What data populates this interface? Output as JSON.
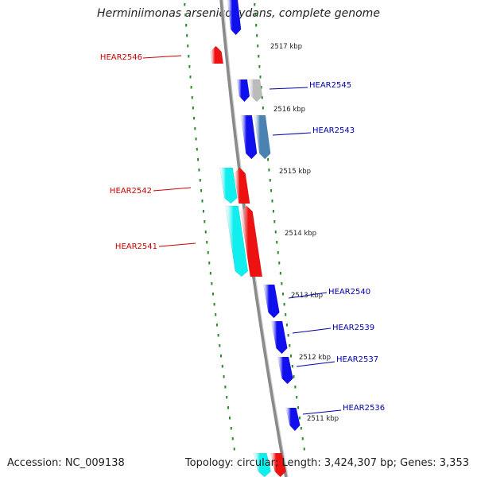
{
  "title": "Herminiimonas arsenicoxydans, complete genome",
  "footer": {
    "accession": "Accession: NC_009138",
    "topology": "Topology: circular; Length: 3,424,307 bp; Genes: 3,353"
  },
  "colors": {
    "backbone": "#8a8a8a",
    "gene_blue": "#1010ee",
    "gene_red": "#ee1111",
    "gene_cyan": "#11eeee",
    "gene_gray": "#bbbbbb",
    "gene_steel": "#4a82b4",
    "ruler": "#2a8a2a",
    "label_red": "#cc0000",
    "label_blue": "#0000aa"
  },
  "kbp_labels": [
    "2517 kbp",
    "2516 kbp",
    "2515 kbp",
    "2514 kbp",
    "2513 kbp",
    "2512 kbp",
    "2511 kbp"
  ],
  "gene_labels": {
    "left": [
      "HEAR2546",
      "HEAR2542",
      "HEAR2541"
    ],
    "right": [
      "HEAR2545",
      "HEAR2543",
      "HEAR2540",
      "HEAR2539",
      "HEAR2537",
      "HEAR2536"
    ]
  }
}
